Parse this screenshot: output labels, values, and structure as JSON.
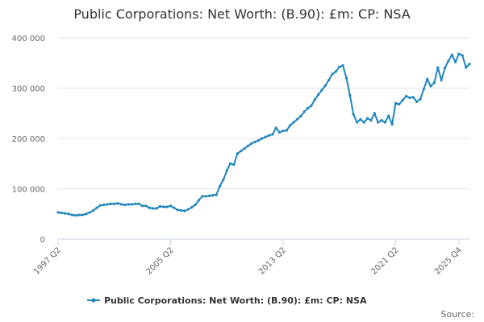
{
  "chart_data": {
    "type": "line",
    "title": "Public Corporations: Net Worth: (B.90): £m: CP: NSA",
    "xlabel": "",
    "ylabel": "",
    "ylim": [
      0,
      400000
    ],
    "yticks": [
      0,
      100000,
      200000,
      300000,
      400000
    ],
    "ytick_labels": [
      "0",
      "100 000",
      "200 000",
      "300 000",
      "400 000"
    ],
    "xtick_labels": [
      "1997 Q2",
      "2005 Q2",
      "2013 Q2",
      "2021 Q2",
      "2025 Q4"
    ],
    "xtick_index": [
      0,
      32,
      64,
      96,
      114
    ],
    "grid": true,
    "legend_position": "bottom-center",
    "colors": {
      "series": "#1f86bd",
      "grid": "#e6e6e6",
      "axis": "#ccd6eb"
    },
    "series": [
      {
        "name": "Public Corporations: Net Worth: (B.90): £m: CP: NSA",
        "values": [
          53000,
          52000,
          51000,
          50000,
          48000,
          47000,
          48000,
          48000,
          50000,
          53000,
          57000,
          62000,
          67000,
          68000,
          69000,
          70000,
          70000,
          71000,
          69000,
          68000,
          69000,
          69000,
          70000,
          70000,
          66000,
          66000,
          62000,
          61000,
          61000,
          65000,
          64000,
          64000,
          66000,
          62000,
          58000,
          57000,
          56000,
          59000,
          63000,
          68000,
          77000,
          85000,
          85000,
          86000,
          87000,
          88000,
          105000,
          118000,
          136000,
          150000,
          148000,
          170000,
          175000,
          180000,
          185000,
          190000,
          193000,
          196000,
          200000,
          203000,
          206000,
          208000,
          221000,
          212000,
          215000,
          216000,
          226000,
          232000,
          238000,
          244000,
          253000,
          260000,
          265000,
          277000,
          287000,
          296000,
          305000,
          316000,
          328000,
          333000,
          342000,
          345000,
          320000,
          286000,
          248000,
          232000,
          238000,
          232000,
          240000,
          236000,
          250000,
          232000,
          236000,
          232000,
          245000,
          228000,
          270000,
          268000,
          276000,
          284000,
          281000,
          282000,
          273000,
          278000,
          298000,
          318000,
          304000,
          311000,
          341000,
          316000,
          340000,
          354000,
          366000,
          352000,
          368000,
          365000,
          341000,
          348000
        ]
      }
    ]
  },
  "footer": {
    "source_label": "Source:"
  }
}
